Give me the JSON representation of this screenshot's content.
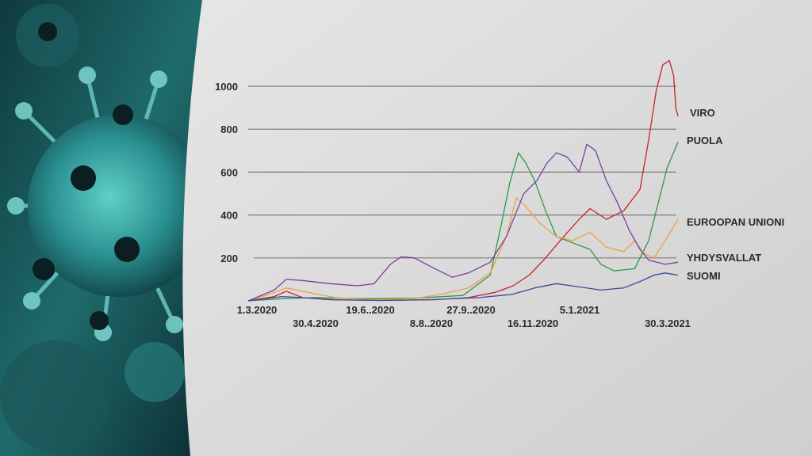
{
  "background": {
    "image": "coronavirus-illustration",
    "panel_color": "#dcdcdc",
    "virus_color": "#2fa7a7"
  },
  "chart_data": {
    "type": "line",
    "title": "",
    "xlabel": "",
    "ylabel": "",
    "ylim": [
      0,
      1000
    ],
    "y_ticks": [
      200,
      400,
      600,
      800,
      1000
    ],
    "grid": "horizontal",
    "x_ticks": [
      "1.3.2020",
      "30.4.2020",
      "19.6..2020",
      "8.8..2020",
      "27.9..2020",
      "16.11.2020",
      "5.1.2021",
      "30.3.2021"
    ],
    "legend": "right",
    "series": [
      {
        "name": "VIRO",
        "color": "#c8202a",
        "points": [
          [
            "2020-03-01",
            0
          ],
          [
            "2020-03-25",
            20
          ],
          [
            "2020-04-05",
            45
          ],
          [
            "2020-04-20",
            15
          ],
          [
            "2020-05-15",
            5
          ],
          [
            "2020-07-01",
            2
          ],
          [
            "2020-08-20",
            5
          ],
          [
            "2020-09-20",
            15
          ],
          [
            "2020-10-15",
            40
          ],
          [
            "2020-10-31",
            70
          ],
          [
            "2020-11-15",
            120
          ],
          [
            "2020-11-30",
            200
          ],
          [
            "2020-12-15",
            290
          ],
          [
            "2020-12-31",
            380
          ],
          [
            "2021-01-10",
            430
          ],
          [
            "2021-01-25",
            380
          ],
          [
            "2021-02-10",
            420
          ],
          [
            "2021-02-25",
            520
          ],
          [
            "2021-03-05",
            750
          ],
          [
            "2021-03-12",
            980
          ],
          [
            "2021-03-18",
            1100
          ],
          [
            "2021-03-24",
            1120
          ],
          [
            "2021-03-28",
            1050
          ],
          [
            "2021-03-30",
            900
          ],
          [
            "2021-04-01",
            860
          ]
        ]
      },
      {
        "name": "PUOLA",
        "color": "#2a9a4a",
        "points": [
          [
            "2020-03-01",
            0
          ],
          [
            "2020-04-01",
            10
          ],
          [
            "2020-05-01",
            15
          ],
          [
            "2020-06-15",
            10
          ],
          [
            "2020-08-01",
            12
          ],
          [
            "2020-09-15",
            25
          ],
          [
            "2020-10-10",
            120
          ],
          [
            "2020-10-20",
            350
          ],
          [
            "2020-10-28",
            550
          ],
          [
            "2020-11-05",
            690
          ],
          [
            "2020-11-12",
            640
          ],
          [
            "2020-11-20",
            560
          ],
          [
            "2020-11-30",
            420
          ],
          [
            "2020-12-10",
            300
          ],
          [
            "2020-12-25",
            270
          ],
          [
            "2021-01-10",
            240
          ],
          [
            "2021-01-20",
            170
          ],
          [
            "2021-02-01",
            140
          ],
          [
            "2021-02-20",
            150
          ],
          [
            "2021-03-05",
            280
          ],
          [
            "2021-03-15",
            480
          ],
          [
            "2021-03-22",
            620
          ],
          [
            "2021-04-01",
            740
          ]
        ]
      },
      {
        "name": "EUROOPAN UNIONI",
        "color": "#f0a040",
        "points": [
          [
            "2020-03-01",
            0
          ],
          [
            "2020-03-20",
            30
          ],
          [
            "2020-04-05",
            60
          ],
          [
            "2020-04-25",
            40
          ],
          [
            "2020-05-20",
            15
          ],
          [
            "2020-06-20",
            5
          ],
          [
            "2020-08-01",
            10
          ],
          [
            "2020-08-25",
            30
          ],
          [
            "2020-09-20",
            60
          ],
          [
            "2020-10-10",
            130
          ],
          [
            "2020-10-25",
            300
          ],
          [
            "2020-11-03",
            480
          ],
          [
            "2020-11-10",
            450
          ],
          [
            "2020-11-25",
            360
          ],
          [
            "2020-12-10",
            300
          ],
          [
            "2020-12-25",
            280
          ],
          [
            "2021-01-10",
            320
          ],
          [
            "2021-01-25",
            250
          ],
          [
            "2021-02-10",
            230
          ],
          [
            "2021-02-20",
            280
          ],
          [
            "2021-03-01",
            220
          ],
          [
            "2021-03-10",
            200
          ],
          [
            "2021-03-20",
            280
          ],
          [
            "2021-04-01",
            380
          ]
        ]
      },
      {
        "name": "YHDYSVALLAT",
        "color": "#7a3fa0",
        "points": [
          [
            "2020-03-01",
            0
          ],
          [
            "2020-03-25",
            50
          ],
          [
            "2020-04-05",
            100
          ],
          [
            "2020-04-20",
            95
          ],
          [
            "2020-05-15",
            80
          ],
          [
            "2020-06-10",
            70
          ],
          [
            "2020-06-25",
            80
          ],
          [
            "2020-07-10",
            170
          ],
          [
            "2020-07-20",
            205
          ],
          [
            "2020-08-01",
            200
          ],
          [
            "2020-08-20",
            150
          ],
          [
            "2020-09-05",
            110
          ],
          [
            "2020-09-20",
            130
          ],
          [
            "2020-10-10",
            180
          ],
          [
            "2020-10-25",
            300
          ],
          [
            "2020-11-10",
            500
          ],
          [
            "2020-11-22",
            560
          ],
          [
            "2020-12-01",
            640
          ],
          [
            "2020-12-10",
            690
          ],
          [
            "2020-12-20",
            670
          ],
          [
            "2020-12-31",
            600
          ],
          [
            "2021-01-07",
            730
          ],
          [
            "2021-01-15",
            700
          ],
          [
            "2021-01-25",
            560
          ],
          [
            "2021-02-05",
            450
          ],
          [
            "2021-02-15",
            330
          ],
          [
            "2021-02-25",
            240
          ],
          [
            "2021-03-05",
            190
          ],
          [
            "2021-03-20",
            170
          ],
          [
            "2021-04-01",
            180
          ]
        ]
      },
      {
        "name": "SUOMI",
        "color": "#3a4a9a",
        "points": [
          [
            "2020-03-01",
            0
          ],
          [
            "2020-04-01",
            20
          ],
          [
            "2020-04-20",
            15
          ],
          [
            "2020-05-20",
            5
          ],
          [
            "2020-07-01",
            2
          ],
          [
            "2020-08-15",
            5
          ],
          [
            "2020-09-30",
            15
          ],
          [
            "2020-10-30",
            30
          ],
          [
            "2020-11-20",
            60
          ],
          [
            "2020-12-10",
            80
          ],
          [
            "2020-12-31",
            65
          ],
          [
            "2021-01-20",
            50
          ],
          [
            "2021-02-10",
            60
          ],
          [
            "2021-02-25",
            90
          ],
          [
            "2021-03-10",
            120
          ],
          [
            "2021-03-20",
            130
          ],
          [
            "2021-04-01",
            120
          ]
        ]
      }
    ]
  }
}
